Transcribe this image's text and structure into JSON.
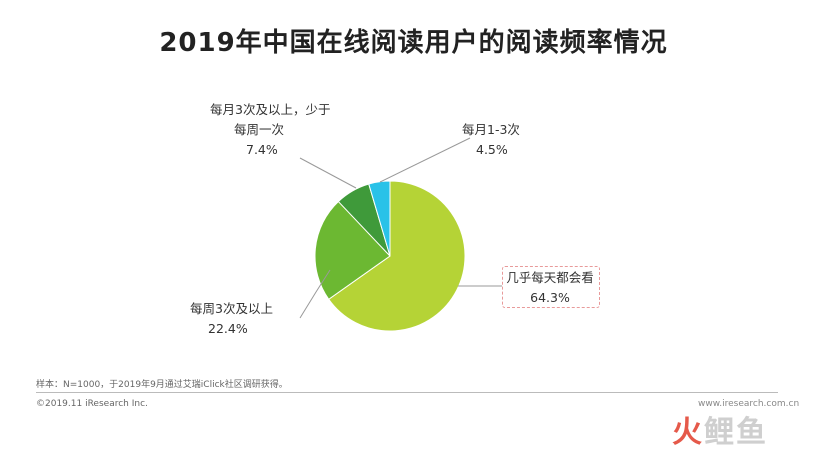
{
  "chart_data": {
    "type": "pie",
    "title": "2019年中国在线阅读用户的阅读频率情况",
    "slices": [
      {
        "label_lines": [
          "几乎每天都会看"
        ],
        "percent_label": "64.3%",
        "value": 64.3,
        "color": "#b5d336"
      },
      {
        "label_lines": [
          "每周3次及以上"
        ],
        "percent_label": "22.4%",
        "value": 22.4,
        "color": "#6cb832"
      },
      {
        "label_lines": [
          "每月3次及以上，少于",
          "每周一次"
        ],
        "percent_label": "7.4%",
        "value": 7.4,
        "color": "#3f9a3a"
      },
      {
        "label_lines": [
          "每月1-3次"
        ],
        "percent_label": "4.5%",
        "value": 4.5,
        "color": "#29c2e8"
      }
    ]
  },
  "footer": {
    "note": "样本：N=1000，于2019年9月通过艾瑞iClick社区调研获得。",
    "copyright": "©2019.11 iResearch Inc.",
    "site": "www.iresearch.com.cn"
  },
  "watermark": {
    "char1": "火",
    "rest": "鲤鱼"
  }
}
